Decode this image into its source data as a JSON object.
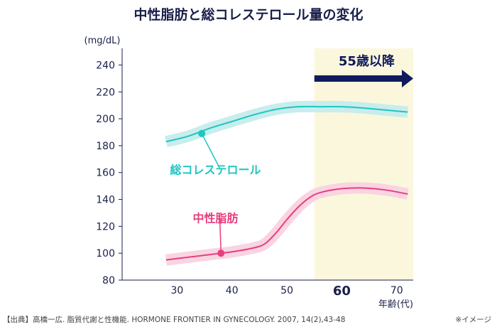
{
  "chart_data": {
    "type": "line",
    "title": "中性脂肪と総コレステロール量の変化",
    "ylabel": "(mg/dL)",
    "xlabel": "年齢(代)",
    "xlim": [
      20,
      73
    ],
    "ylim": [
      80,
      245
    ],
    "yticks": [
      80,
      100,
      120,
      140,
      160,
      180,
      200,
      220,
      240
    ],
    "xticks": [
      {
        "value": 30,
        "label": "30",
        "bold": false
      },
      {
        "value": 40,
        "label": "40",
        "bold": false
      },
      {
        "value": 50,
        "label": "50",
        "bold": false
      },
      {
        "value": 60,
        "label": "60",
        "bold": true
      },
      {
        "value": 70,
        "label": "70",
        "bold": false
      }
    ],
    "highlight": {
      "x_from": 55,
      "x_to": 73,
      "label": "55歳以降",
      "color": "#fbf7dc"
    },
    "series": [
      {
        "name": "総コレステロール",
        "color": "#1fc5c0",
        "band_color": "#c4ecec",
        "marker": {
          "x": 34.5,
          "y": 189
        },
        "label_at": {
          "x": 37,
          "y": 159
        },
        "points": [
          [
            28,
            183
          ],
          [
            32,
            187
          ],
          [
            36,
            193
          ],
          [
            40,
            198
          ],
          [
            44,
            203
          ],
          [
            48,
            207
          ],
          [
            52,
            209
          ],
          [
            56,
            209
          ],
          [
            60,
            209
          ],
          [
            64,
            208
          ],
          [
            68,
            206.5
          ],
          [
            72,
            205
          ]
        ]
      },
      {
        "name": "中性脂肪",
        "color": "#e83e7e",
        "band_color": "#f9d2e0",
        "marker": {
          "x": 38,
          "y": 100
        },
        "label_at": {
          "x": 37,
          "y": 123
        },
        "points": [
          [
            28,
            95
          ],
          [
            32,
            97
          ],
          [
            36,
            99
          ],
          [
            40,
            101
          ],
          [
            44,
            104
          ],
          [
            46,
            107
          ],
          [
            48,
            115
          ],
          [
            50,
            125
          ],
          [
            52,
            134
          ],
          [
            54,
            141
          ],
          [
            56,
            145
          ],
          [
            60,
            148
          ],
          [
            64,
            148.5
          ],
          [
            68,
            147
          ],
          [
            72,
            144
          ]
        ]
      }
    ]
  },
  "footer": {
    "source": "【出典】高橋一広. 脂質代謝と性機能. HORMONE FRONTIER IN GYNECOLOGY. 2007, 14(2),43-48",
    "note": "※イメージ"
  }
}
